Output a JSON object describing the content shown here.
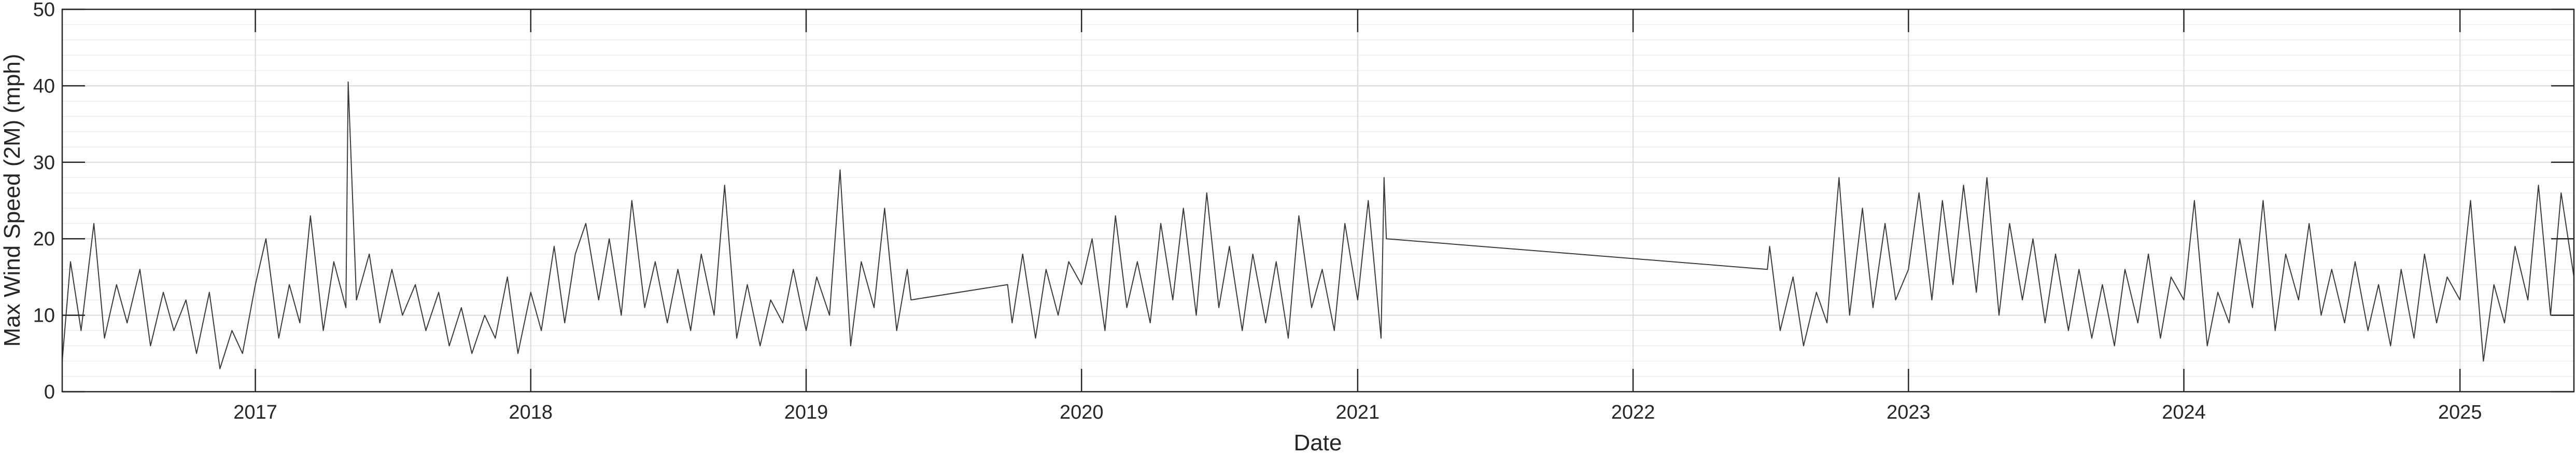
{
  "chart_data": {
    "type": "line",
    "title": "",
    "xlabel": "Date",
    "ylabel": "Max Wind Speed (2M) (mph)",
    "xlim": [
      "2016-04-20",
      "2025-06-01"
    ],
    "ylim": [
      0,
      50
    ],
    "y_ticks": [
      0,
      10,
      20,
      30,
      40,
      50
    ],
    "x_ticks": [
      {
        "date": "2017-01-01",
        "label": "2017"
      },
      {
        "date": "2018-01-01",
        "label": "2018"
      },
      {
        "date": "2019-01-01",
        "label": "2019"
      },
      {
        "date": "2020-01-01",
        "label": "2020"
      },
      {
        "date": "2021-01-01",
        "label": "2021"
      },
      {
        "date": "2022-01-01",
        "label": "2022"
      },
      {
        "date": "2023-01-01",
        "label": "2023"
      },
      {
        "date": "2024-01-01",
        "label": "2024"
      },
      {
        "date": "2025-01-01",
        "label": "2025"
      }
    ],
    "grid": {
      "major": true,
      "minor_y": true
    },
    "legend": "none",
    "line_color": "#3a3a3a",
    "series": [
      {
        "x": [
          "2016-04-20",
          "2016-05-01",
          "2016-05-15",
          "2016-06-01",
          "2016-06-15",
          "2016-07-01",
          "2016-07-15",
          "2016-08-01",
          "2016-08-15",
          "2016-09-01",
          "2016-09-15",
          "2016-10-01",
          "2016-10-15",
          "2016-11-01",
          "2016-11-15",
          "2016-12-01",
          "2016-12-15",
          "2017-01-01",
          "2017-01-15",
          "2017-02-01",
          "2017-02-15",
          "2017-03-01",
          "2017-03-15",
          "2017-04-01",
          "2017-04-15",
          "2017-05-01",
          "2017-05-04",
          "2017-05-15",
          "2017-06-01",
          "2017-06-15",
          "2017-07-01",
          "2017-07-15",
          "2017-08-01",
          "2017-08-15",
          "2017-09-01",
          "2017-09-15",
          "2017-10-01",
          "2017-10-15",
          "2017-11-01",
          "2017-11-15",
          "2017-12-01",
          "2017-12-15",
          "2018-01-01",
          "2018-01-15",
          "2018-02-01",
          "2018-02-15",
          "2018-03-01",
          "2018-03-15",
          "2018-04-01",
          "2018-04-15",
          "2018-05-01",
          "2018-05-15",
          "2018-06-01",
          "2018-06-15",
          "2018-07-01",
          "2018-07-15",
          "2018-08-01",
          "2018-08-15",
          "2018-09-01",
          "2018-09-15",
          "2018-10-01",
          "2018-10-15",
          "2018-11-01",
          "2018-11-15",
          "2018-12-01",
          "2018-12-15",
          "2019-01-01",
          "2019-01-15",
          "2019-02-01",
          "2019-02-15",
          "2019-03-01",
          "2019-03-15",
          "2019-04-01",
          "2019-04-15",
          "2019-05-01",
          "2019-05-15",
          "2019-05-20",
          "2019-09-25",
          "2019-10-01",
          "2019-10-15",
          "2019-11-01",
          "2019-11-15",
          "2019-12-01",
          "2019-12-15",
          "2020-01-01",
          "2020-01-15",
          "2020-02-01",
          "2020-02-15",
          "2020-03-01",
          "2020-03-15",
          "2020-04-01",
          "2020-04-15",
          "2020-05-01",
          "2020-05-15",
          "2020-06-01",
          "2020-06-15",
          "2020-07-01",
          "2020-07-15",
          "2020-08-01",
          "2020-08-15",
          "2020-09-01",
          "2020-09-15",
          "2020-10-01",
          "2020-10-15",
          "2020-11-01",
          "2020-11-15",
          "2020-12-01",
          "2020-12-15",
          "2021-01-01",
          "2021-01-15",
          "2021-02-01",
          "2021-02-05",
          "2021-02-08",
          "2022-06-28",
          "2022-07-01",
          "2022-07-15",
          "2022-08-01",
          "2022-08-15",
          "2022-09-01",
          "2022-09-15",
          "2022-10-01",
          "2022-10-15",
          "2022-11-01",
          "2022-11-15",
          "2022-12-01",
          "2022-12-15",
          "2023-01-01",
          "2023-01-15",
          "2023-02-01",
          "2023-02-15",
          "2023-03-01",
          "2023-03-15",
          "2023-04-01",
          "2023-04-15",
          "2023-05-01",
          "2023-05-15",
          "2023-06-01",
          "2023-06-15",
          "2023-07-01",
          "2023-07-15",
          "2023-08-01",
          "2023-08-15",
          "2023-09-01",
          "2023-09-15",
          "2023-10-01",
          "2023-10-15",
          "2023-11-01",
          "2023-11-15",
          "2023-12-01",
          "2023-12-15",
          "2024-01-01",
          "2024-01-15",
          "2024-02-01",
          "2024-02-15",
          "2024-03-01",
          "2024-03-15",
          "2024-04-01",
          "2024-04-15",
          "2024-05-01",
          "2024-05-15",
          "2024-06-01",
          "2024-06-15",
          "2024-07-01",
          "2024-07-15",
          "2024-08-01",
          "2024-08-15",
          "2024-09-01",
          "2024-09-15",
          "2024-10-01",
          "2024-10-15",
          "2024-11-01",
          "2024-11-15",
          "2024-12-01",
          "2024-12-15",
          "2025-01-01",
          "2025-01-15",
          "2025-02-01",
          "2025-02-15",
          "2025-03-01",
          "2025-03-15",
          "2025-04-01",
          "2025-04-15",
          "2025-05-01",
          "2025-05-15",
          "2025-06-01"
        ],
        "y": [
          4,
          17,
          8,
          22,
          7,
          14,
          9,
          16,
          6,
          13,
          8,
          12,
          5,
          13,
          3,
          8,
          5,
          14,
          20,
          7,
          14,
          9,
          23,
          8,
          17,
          11,
          40.5,
          12,
          18,
          9,
          16,
          10,
          14,
          8,
          13,
          6,
          11,
          5,
          10,
          7,
          15,
          5,
          13,
          8,
          19,
          9,
          18,
          22,
          12,
          20,
          10,
          25,
          11,
          17,
          9,
          16,
          8,
          18,
          10,
          27,
          7,
          14,
          6,
          12,
          9,
          16,
          8,
          15,
          10,
          29,
          6,
          17,
          11,
          24,
          8,
          16,
          12,
          14,
          9,
          18,
          7,
          16,
          10,
          17,
          14,
          20,
          8,
          23,
          11,
          17,
          9,
          22,
          12,
          24,
          10,
          26,
          11,
          19,
          8,
          18,
          9,
          17,
          7,
          23,
          11,
          16,
          8,
          22,
          12,
          25,
          7,
          28,
          20,
          16,
          19,
          8,
          15,
          6,
          13,
          9,
          28,
          10,
          24,
          11,
          22,
          12,
          16,
          26,
          12,
          25,
          14,
          27,
          13,
          28,
          10,
          22,
          12,
          20,
          9,
          18,
          8,
          16,
          7,
          14,
          6,
          16,
          9,
          18,
          7,
          15,
          12,
          25,
          6,
          13,
          9,
          20,
          11,
          25,
          8,
          18,
          12,
          22,
          10,
          16,
          9,
          17,
          8,
          14,
          6,
          16,
          7,
          18,
          9,
          15,
          12,
          25,
          4,
          14,
          9,
          19,
          12,
          27,
          10,
          26,
          15
        ]
      }
    ]
  }
}
